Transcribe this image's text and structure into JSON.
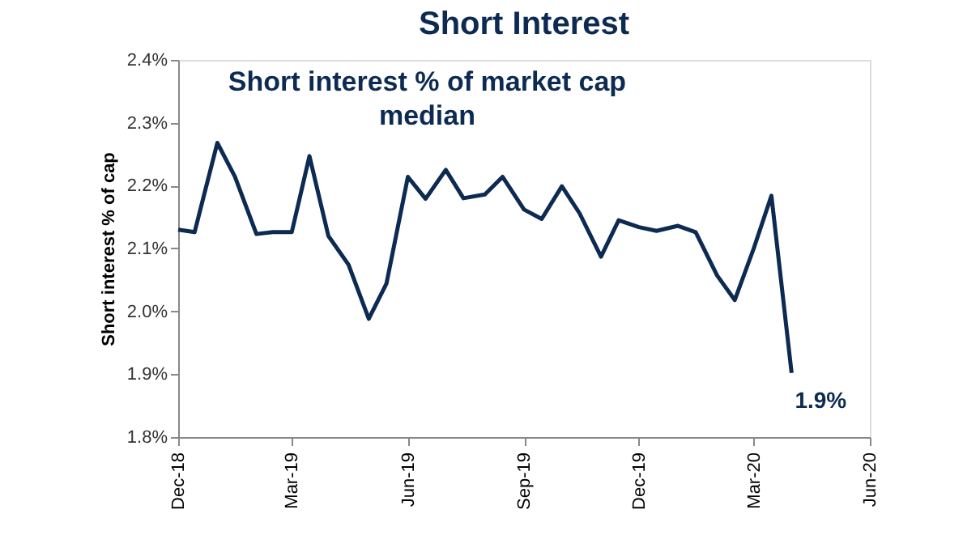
{
  "chart_data": {
    "type": "line",
    "title": "Short Interest",
    "ylabel": "Short interest % of cap",
    "x": [
      "2018-12-01",
      "2018-12-14",
      "2019-01-01",
      "2019-01-15",
      "2019-02-01",
      "2019-02-14",
      "2019-03-01",
      "2019-03-15",
      "2019-03-30",
      "2019-04-15",
      "2019-05-01",
      "2019-05-15",
      "2019-06-01",
      "2019-06-15",
      "2019-07-01",
      "2019-07-15",
      "2019-08-01",
      "2019-08-15",
      "2019-09-01",
      "2019-09-15",
      "2019-10-01",
      "2019-10-15",
      "2019-11-01",
      "2019-11-15",
      "2019-12-01",
      "2019-12-15",
      "2020-01-01",
      "2020-01-15",
      "2020-02-01",
      "2020-02-15",
      "2020-03-01",
      "2020-03-15",
      "2020-03-31"
    ],
    "series": [
      {
        "color": "#0d2b52",
        "values": [
          2.13,
          2.126,
          2.268,
          2.214,
          2.123,
          2.126,
          2.126,
          2.247,
          2.12,
          2.074,
          1.988,
          2.044,
          2.214,
          2.179,
          2.225,
          2.18,
          2.186,
          2.214,
          2.162,
          2.147,
          2.199,
          2.156,
          2.087,
          2.145,
          2.134,
          2.128,
          2.136,
          2.126,
          2.057,
          2.018,
          2.1,
          2.184,
          1.902
        ]
      }
    ],
    "xlim": [
      "2018-12-01",
      "2020-06-01"
    ],
    "xticks": [
      {
        "value": "2018-12-01",
        "label": "Dec-18"
      },
      {
        "value": "2019-03-01",
        "label": "Mar-19"
      },
      {
        "value": "2019-06-01",
        "label": "Jun-19"
      },
      {
        "value": "2019-09-01",
        "label": "Sep-19"
      },
      {
        "value": "2019-12-01",
        "label": "Dec-19"
      },
      {
        "value": "2020-03-01",
        "label": "Mar-20"
      },
      {
        "value": "2020-06-01",
        "label": "Jun-20"
      }
    ],
    "ylim": [
      1.8,
      2.4
    ],
    "yticks": [
      {
        "value": 1.8,
        "label": "1.8%"
      },
      {
        "value": 1.9,
        "label": "1.9%"
      },
      {
        "value": 2.0,
        "label": "2.0%"
      },
      {
        "value": 2.1,
        "label": "2.1%"
      },
      {
        "value": 2.2,
        "label": "2.2%"
      },
      {
        "value": 2.3,
        "label": "2.3%"
      },
      {
        "value": 2.4,
        "label": "2.4%"
      }
    ],
    "annotations": [
      "Short interest % of market cap",
      "median",
      {
        "text": "1.9%",
        "x": "2020-03-31",
        "y": 1.9
      }
    ],
    "grid": false,
    "marker": "none",
    "line_style": "solid"
  }
}
